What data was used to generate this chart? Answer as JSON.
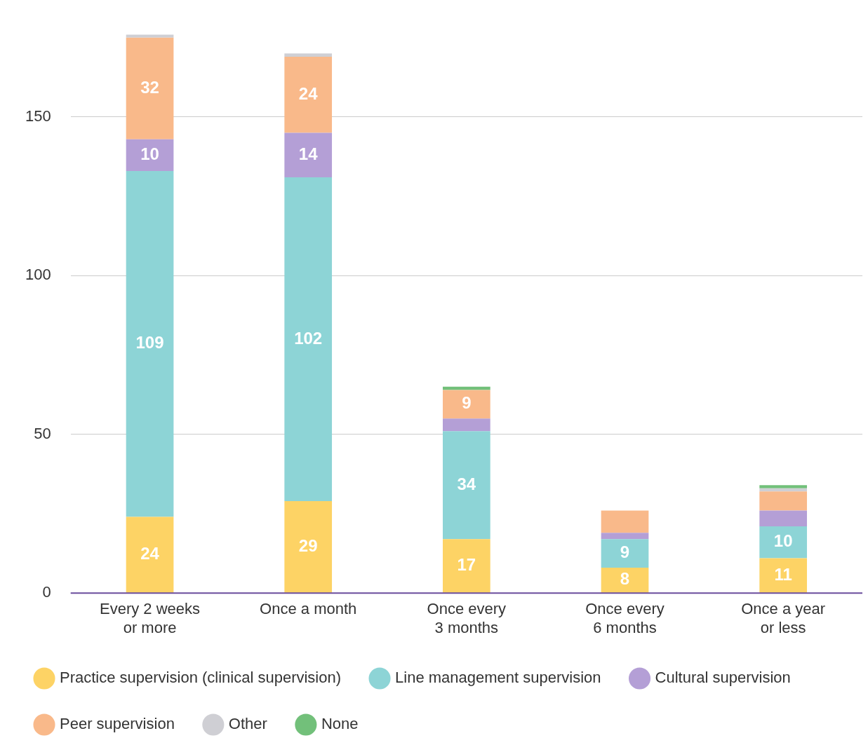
{
  "chart_data": {
    "type": "bar",
    "stacked": true,
    "categories": [
      "Every 2 weeks or more",
      "Once a month",
      "Once every 3 months",
      "Once every 6 months",
      "Once a year or less"
    ],
    "series": [
      {
        "name": "Practice supervision (clinical supervision)",
        "color": "#fdd365",
        "values": [
          24,
          29,
          17,
          8,
          11
        ],
        "value_labels": [
          "24",
          "29",
          "17",
          "8",
          "11"
        ]
      },
      {
        "name": "Line management supervision",
        "color": "#8dd4d6",
        "values": [
          109,
          102,
          34,
          9,
          10
        ],
        "value_labels": [
          "109",
          "102",
          "34",
          "9",
          "10"
        ]
      },
      {
        "name": "Cultural supervision",
        "color": "#b49fd6",
        "values": [
          10,
          14,
          4,
          2,
          5
        ],
        "value_labels": [
          "10",
          "14",
          null,
          null,
          null
        ]
      },
      {
        "name": "Peer supervision",
        "color": "#f9b98a",
        "values": [
          32,
          24,
          9,
          7,
          6
        ],
        "value_labels": [
          "32",
          "24",
          "9",
          null,
          null
        ]
      },
      {
        "name": "Other",
        "color": "#cfcfd4",
        "values": [
          1,
          1,
          0,
          0,
          1
        ],
        "value_labels": [
          null,
          null,
          null,
          null,
          null
        ]
      },
      {
        "name": "None",
        "color": "#72c07a",
        "values": [
          0,
          0,
          1,
          0,
          1
        ],
        "value_labels": [
          null,
          null,
          null,
          null,
          null
        ]
      }
    ],
    "ylim": [
      0,
      176
    ],
    "yticks": [
      0,
      50,
      100,
      150
    ],
    "grid": "y",
    "legend": "bottom"
  }
}
